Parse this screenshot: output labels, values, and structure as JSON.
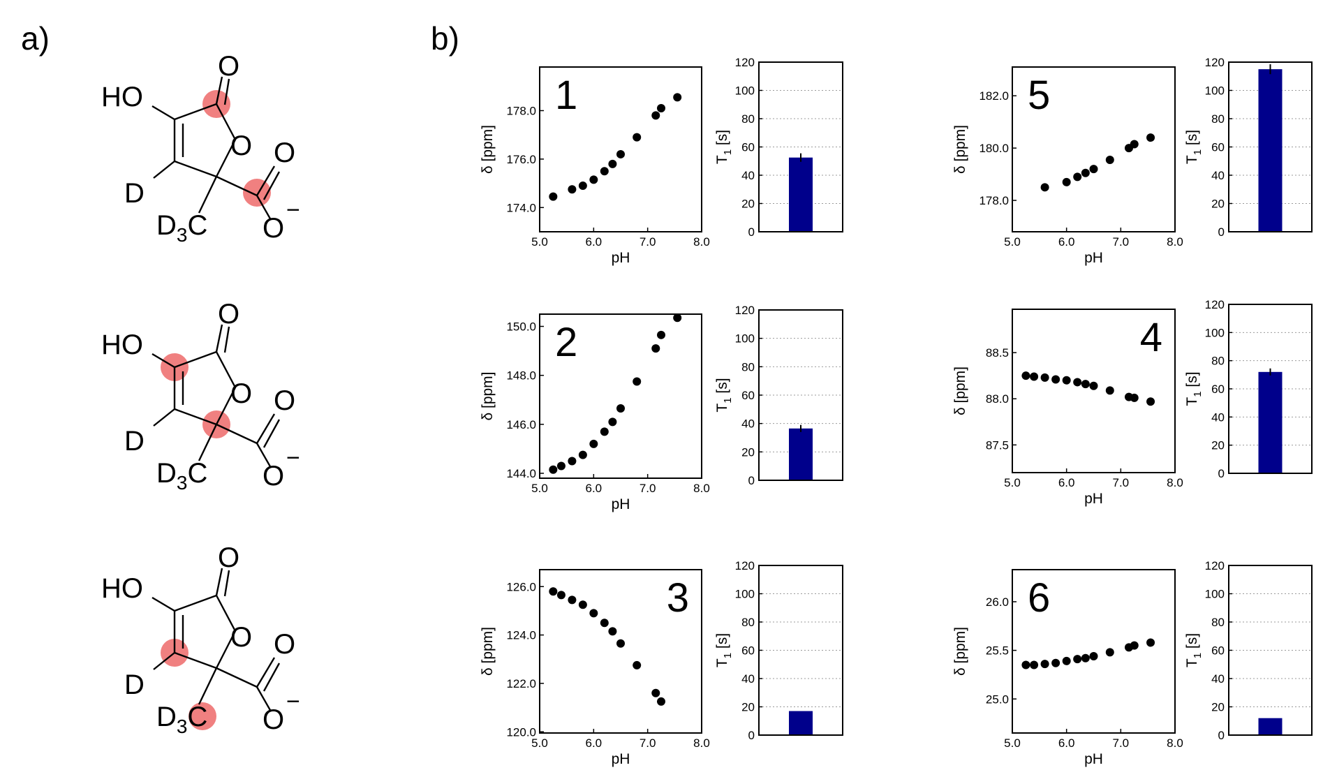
{
  "panel_labels": {
    "a": "a)",
    "b": "b)"
  },
  "molecule": {
    "atoms": {
      "oh": "HO",
      "o_carbonyl": "O",
      "o_ring": "O",
      "o_acid": "O",
      "o_minus": "O",
      "charge": "−",
      "d": "D",
      "d3c": "D3C",
      "d3c_main": "D",
      "d3c_sub": "3",
      "d3c_tail": "C"
    },
    "highlight_color": "#f08080"
  },
  "colors": {
    "bar": "#00008b",
    "point": "#000000",
    "grid": "#999999"
  },
  "chart_data": [
    {
      "id": "1",
      "type": "scatter",
      "number_label": "1",
      "xlabel": "pH",
      "ylabel": "δ [ppm]",
      "xlim": [
        5.0,
        8.0
      ],
      "ylim": [
        173.0,
        179.8
      ],
      "xticks": [
        "5.0",
        "6.0",
        "7.0",
        "8.0"
      ],
      "yticks": [
        "174.0",
        "176.0",
        "178.0"
      ],
      "x": [
        5.25,
        5.6,
        5.8,
        6.0,
        6.2,
        6.35,
        6.5,
        6.8,
        7.15,
        7.25,
        7.55
      ],
      "y": [
        174.45,
        174.75,
        174.9,
        175.15,
        175.5,
        175.8,
        176.2,
        176.9,
        177.8,
        178.1,
        178.55
      ]
    },
    {
      "id": "2",
      "type": "scatter",
      "number_label": "2",
      "xlabel": "pH",
      "ylabel": "δ [ppm]",
      "xlim": [
        5.0,
        8.0
      ],
      "ylim": [
        143.8,
        150.5
      ],
      "xticks": [
        "5.0",
        "6.0",
        "7.0",
        "8.0"
      ],
      "yticks": [
        "144.0",
        "146.0",
        "148.0",
        "150.0"
      ],
      "x": [
        5.25,
        5.4,
        5.6,
        5.8,
        6.0,
        6.2,
        6.35,
        6.5,
        6.8,
        7.15,
        7.25,
        7.55
      ],
      "y": [
        144.15,
        144.3,
        144.5,
        144.75,
        145.2,
        145.7,
        146.1,
        146.65,
        147.75,
        149.1,
        149.65,
        150.35
      ]
    },
    {
      "id": "3",
      "type": "scatter",
      "number_label": "3",
      "xlabel": "pH",
      "ylabel": "δ [ppm]",
      "xlim": [
        5.0,
        8.0
      ],
      "ylim": [
        119.95,
        126.7
      ],
      "xticks": [
        "5.0",
        "6.0",
        "7.0",
        "8.0"
      ],
      "yticks": [
        "120.0",
        "122.0",
        "124.0",
        "126.0"
      ],
      "x": [
        5.25,
        5.4,
        5.6,
        5.8,
        6.0,
        6.2,
        6.35,
        6.5,
        6.8,
        7.15,
        7.25
      ],
      "y": [
        125.8,
        125.65,
        125.45,
        125.25,
        124.9,
        124.5,
        124.15,
        123.65,
        122.75,
        121.6,
        121.25
      ]
    },
    {
      "id": "5",
      "type": "scatter",
      "number_label": "5",
      "xlabel": "pH",
      "ylabel": "δ [ppm]",
      "xlim": [
        5.0,
        8.0
      ],
      "ylim": [
        176.8,
        183.1
      ],
      "xticks": [
        "5.0",
        "6.0",
        "7.0",
        "8.0"
      ],
      "yticks": [
        "178.0",
        "180.0",
        "182.0"
      ],
      "x": [
        5.6,
        6.0,
        6.2,
        6.35,
        6.5,
        6.8,
        7.15,
        7.25,
        7.55
      ],
      "y": [
        178.5,
        178.7,
        178.9,
        179.05,
        179.2,
        179.55,
        180.0,
        180.15,
        180.4
      ]
    },
    {
      "id": "4",
      "type": "scatter",
      "number_label": "4",
      "xlabel": "pH",
      "ylabel": "δ [ppm]",
      "xlim": [
        5.0,
        8.0
      ],
      "ylim": [
        87.2,
        88.97
      ],
      "xticks": [
        "5.0",
        "6.0",
        "7.0",
        "8.0"
      ],
      "yticks": [
        "87.5",
        "88.0",
        "88.5"
      ],
      "x": [
        5.25,
        5.4,
        5.6,
        5.8,
        6.0,
        6.2,
        6.35,
        6.5,
        6.8,
        7.15,
        7.25,
        7.55
      ],
      "y": [
        88.25,
        88.24,
        88.23,
        88.21,
        88.2,
        88.18,
        88.16,
        88.14,
        88.09,
        88.02,
        88.01,
        87.97
      ]
    },
    {
      "id": "6",
      "type": "scatter",
      "number_label": "6",
      "xlabel": "pH",
      "ylabel": "δ [ppm]",
      "xlim": [
        5.0,
        8.0
      ],
      "ylim": [
        24.65,
        26.33
      ],
      "xticks": [
        "5.0",
        "6.0",
        "7.0",
        "8.0"
      ],
      "yticks": [
        "25.0",
        "25.5",
        "26.0"
      ],
      "x": [
        5.25,
        5.4,
        5.6,
        5.8,
        6.0,
        6.2,
        6.35,
        6.5,
        6.8,
        7.15,
        7.25,
        7.55
      ],
      "y": [
        25.35,
        25.35,
        25.36,
        25.37,
        25.39,
        25.41,
        25.42,
        25.44,
        25.48,
        25.53,
        25.55,
        25.58
      ]
    },
    {
      "id": "T1-1",
      "type": "bar",
      "ylabel_main": "T",
      "ylabel_sub": "1",
      "ylabel_tail": " [s]",
      "ylim": [
        0,
        120
      ],
      "yticks": [
        "0",
        "20",
        "40",
        "60",
        "80",
        "100",
        "120"
      ],
      "value": 52.5,
      "error": 3.0
    },
    {
      "id": "T1-2",
      "type": "bar",
      "ylabel_main": "T",
      "ylabel_sub": "1",
      "ylabel_tail": " [s]",
      "ylim": [
        0,
        120
      ],
      "yticks": [
        "0",
        "20",
        "40",
        "60",
        "80",
        "100",
        "120"
      ],
      "value": 36.5,
      "error": 2.5
    },
    {
      "id": "T1-3",
      "type": "bar",
      "ylabel_main": "T",
      "ylabel_sub": "1",
      "ylabel_tail": " [s]",
      "ylim": [
        0,
        120
      ],
      "yticks": [
        "0",
        "20",
        "40",
        "60",
        "80",
        "100",
        "120"
      ],
      "value": 17.0,
      "error": 0
    },
    {
      "id": "T1-5",
      "type": "bar",
      "ylabel_main": "T",
      "ylabel_sub": "1",
      "ylabel_tail": " [s]",
      "ylim": [
        0,
        120
      ],
      "yticks": [
        "0",
        "20",
        "40",
        "60",
        "80",
        "100",
        "120"
      ],
      "value": 115.0,
      "error": 3.5
    },
    {
      "id": "T1-4",
      "type": "bar",
      "ylabel_main": "T",
      "ylabel_sub": "1",
      "ylabel_tail": " [s]",
      "ylim": [
        0,
        120
      ],
      "yticks": [
        "0",
        "20",
        "40",
        "60",
        "80",
        "100",
        "120"
      ],
      "value": 72.0,
      "error": 2.5
    },
    {
      "id": "T1-6",
      "type": "bar",
      "ylabel_main": "T",
      "ylabel_sub": "1",
      "ylabel_tail": " [s]",
      "ylim": [
        0,
        120
      ],
      "yticks": [
        "0",
        "20",
        "40",
        "60",
        "80",
        "100",
        "120"
      ],
      "value": 12.0,
      "error": 0
    }
  ]
}
